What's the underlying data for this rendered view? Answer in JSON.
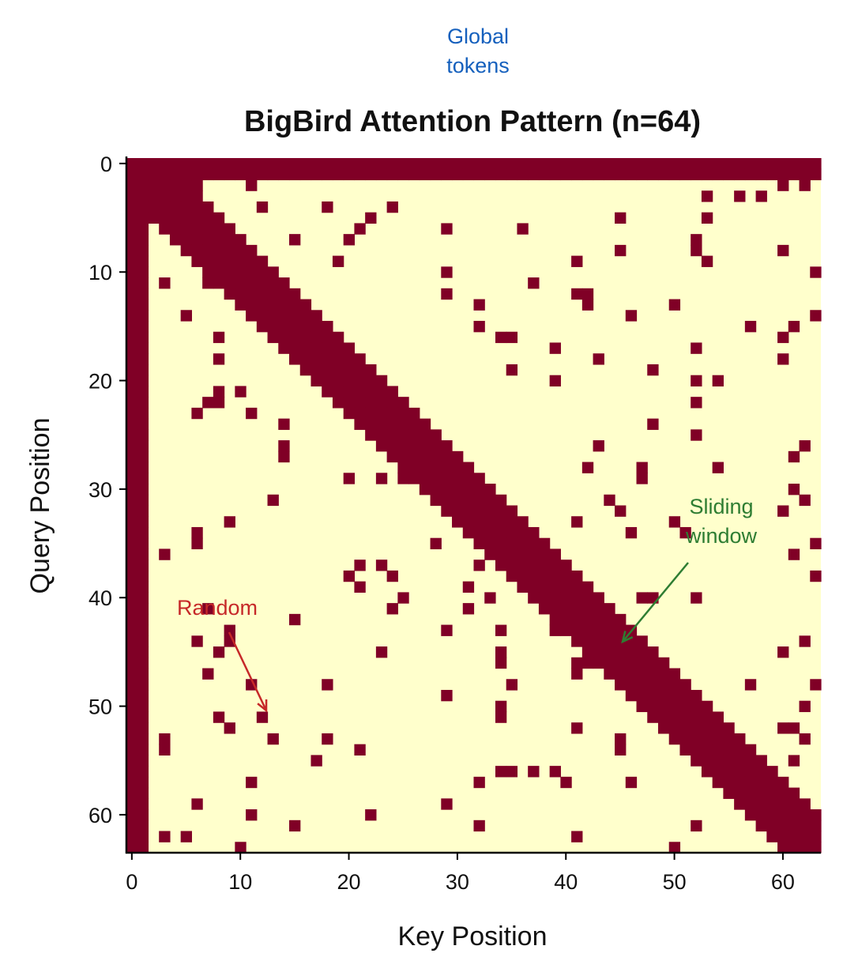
{
  "chart_data": {
    "type": "heatmap",
    "title": "BigBird Attention Pattern (n=64)",
    "xlabel": "Key Position",
    "ylabel": "Query Position",
    "n": 64,
    "xlim": [
      0,
      63
    ],
    "ylim": [
      63,
      0
    ],
    "xticks": [
      "0",
      "10",
      "20",
      "30",
      "40",
      "50",
      "60"
    ],
    "yticks": [
      "0",
      "10",
      "20",
      "30",
      "40",
      "50",
      "60"
    ],
    "colors": {
      "attended": "#800026",
      "masked": "#ffffcc"
    },
    "global_tokens": [
      0,
      1
    ],
    "global_block_rows": [
      0,
      1,
      2,
      3,
      4
    ],
    "global_block_cols": [
      0,
      1,
      2,
      3,
      4,
      5,
      6
    ],
    "window_radius": 3,
    "random_links": [
      [
        1,
        11
      ],
      [
        1,
        40
      ],
      [
        2,
        11
      ],
      [
        2,
        60
      ],
      [
        2,
        62
      ],
      [
        3,
        58
      ],
      [
        3,
        56
      ],
      [
        3,
        53
      ],
      [
        4,
        12
      ],
      [
        4,
        18
      ],
      [
        4,
        24
      ],
      [
        5,
        22
      ],
      [
        5,
        45
      ],
      [
        5,
        53
      ],
      [
        6,
        21
      ],
      [
        6,
        29
      ],
      [
        6,
        36
      ],
      [
        7,
        15
      ],
      [
        7,
        20
      ],
      [
        7,
        52
      ],
      [
        8,
        45
      ],
      [
        8,
        52
      ],
      [
        8,
        60
      ],
      [
        9,
        19
      ],
      [
        9,
        41
      ],
      [
        9,
        53
      ],
      [
        10,
        29
      ],
      [
        10,
        63
      ],
      [
        11,
        3
      ],
      [
        11,
        7
      ],
      [
        11,
        37
      ],
      [
        12,
        29
      ],
      [
        12,
        41
      ],
      [
        12,
        42
      ],
      [
        13,
        32
      ],
      [
        13,
        42
      ],
      [
        13,
        50
      ],
      [
        14,
        5
      ],
      [
        14,
        46
      ],
      [
        14,
        63
      ],
      [
        15,
        32
      ],
      [
        15,
        57
      ],
      [
        15,
        61
      ],
      [
        16,
        8
      ],
      [
        16,
        34
      ],
      [
        16,
        35
      ],
      [
        16,
        60
      ],
      [
        17,
        39
      ],
      [
        17,
        52
      ],
      [
        18,
        8
      ],
      [
        18,
        43
      ],
      [
        18,
        60
      ],
      [
        19,
        35
      ],
      [
        19,
        48
      ],
      [
        20,
        39
      ],
      [
        20,
        52
      ],
      [
        20,
        54
      ],
      [
        21,
        1
      ],
      [
        21,
        8
      ],
      [
        21,
        10
      ],
      [
        22,
        7
      ],
      [
        22,
        8
      ],
      [
        22,
        52
      ],
      [
        23,
        6
      ],
      [
        23,
        11
      ],
      [
        24,
        14
      ],
      [
        24,
        48
      ],
      [
        25,
        52
      ],
      [
        26,
        14
      ],
      [
        26,
        43
      ],
      [
        26,
        62
      ],
      [
        27,
        14
      ],
      [
        27,
        61
      ],
      [
        28,
        42
      ],
      [
        28,
        47
      ],
      [
        28,
        54
      ],
      [
        29,
        20
      ],
      [
        29,
        23
      ],
      [
        29,
        25
      ],
      [
        29,
        47
      ],
      [
        30,
        61
      ],
      [
        31,
        13
      ],
      [
        31,
        44
      ],
      [
        31,
        62
      ],
      [
        32,
        45
      ],
      [
        32,
        60
      ],
      [
        33,
        9
      ],
      [
        33,
        41
      ],
      [
        33,
        50
      ],
      [
        34,
        6
      ],
      [
        34,
        46
      ],
      [
        34,
        51
      ],
      [
        35,
        6
      ],
      [
        35,
        28
      ],
      [
        35,
        63
      ],
      [
        36,
        3
      ],
      [
        36,
        61
      ],
      [
        37,
        21
      ],
      [
        37,
        23
      ],
      [
        37,
        32
      ],
      [
        38,
        20
      ],
      [
        38,
        24
      ],
      [
        38,
        63
      ],
      [
        39,
        21
      ],
      [
        39,
        31
      ],
      [
        40,
        25
      ],
      [
        40,
        33
      ],
      [
        40,
        47
      ],
      [
        40,
        48
      ],
      [
        40,
        52
      ],
      [
        41,
        7
      ],
      [
        41,
        24
      ],
      [
        41,
        31
      ],
      [
        42,
        15
      ],
      [
        43,
        9
      ],
      [
        43,
        29
      ],
      [
        43,
        34
      ],
      [
        43,
        39
      ],
      [
        44,
        6
      ],
      [
        44,
        9
      ],
      [
        44,
        62
      ],
      [
        45,
        8
      ],
      [
        45,
        23
      ],
      [
        45,
        34
      ],
      [
        45,
        60
      ],
      [
        46,
        34
      ],
      [
        46,
        41
      ],
      [
        46,
        42
      ],
      [
        47,
        7
      ],
      [
        47,
        41
      ],
      [
        48,
        11
      ],
      [
        48,
        18
      ],
      [
        48,
        35
      ],
      [
        48,
        50
      ],
      [
        48,
        57
      ],
      [
        48,
        63
      ],
      [
        49,
        29
      ],
      [
        50,
        34
      ],
      [
        50,
        62
      ],
      [
        51,
        8
      ],
      [
        51,
        12
      ],
      [
        51,
        34
      ],
      [
        52,
        9
      ],
      [
        52,
        41
      ],
      [
        52,
        60
      ],
      [
        52,
        61
      ],
      [
        53,
        3
      ],
      [
        53,
        13
      ],
      [
        53,
        18
      ],
      [
        53,
        45
      ],
      [
        53,
        62
      ],
      [
        54,
        3
      ],
      [
        54,
        21
      ],
      [
        54,
        45
      ],
      [
        55,
        17
      ],
      [
        55,
        61
      ],
      [
        56,
        34
      ],
      [
        56,
        35
      ],
      [
        56,
        37
      ],
      [
        56,
        39
      ],
      [
        57,
        11
      ],
      [
        57,
        32
      ],
      [
        57,
        40
      ],
      [
        57,
        46
      ],
      [
        59,
        6
      ],
      [
        59,
        29
      ],
      [
        60,
        1
      ],
      [
        60,
        11
      ],
      [
        60,
        22
      ],
      [
        61,
        15
      ],
      [
        61,
        32
      ],
      [
        61,
        52
      ],
      [
        62,
        3
      ],
      [
        62,
        5
      ],
      [
        62,
        41
      ],
      [
        63,
        10
      ],
      [
        63,
        50
      ]
    ],
    "annotations": [
      {
        "text": "Global tokens",
        "lines": [
          "Global",
          "tokens"
        ],
        "color": "#1560bd"
      },
      {
        "text": "Sliding window",
        "lines": [
          "Sliding",
          "window"
        ],
        "color": "#2e7d32"
      },
      {
        "text": "Random",
        "lines": [
          "Random"
        ],
        "color": "#c62828"
      }
    ]
  }
}
